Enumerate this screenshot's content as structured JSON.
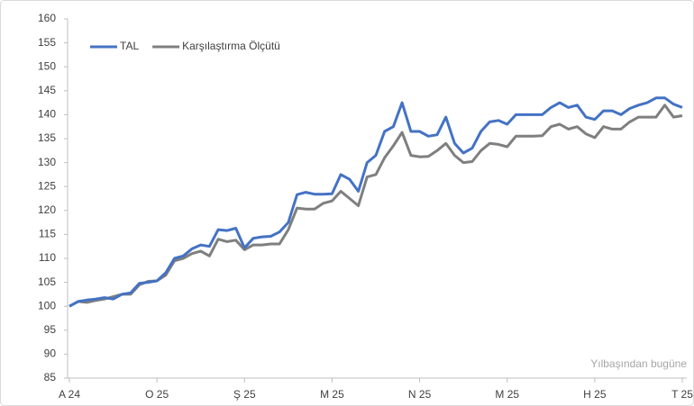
{
  "chart_data": {
    "type": "line",
    "categories": [
      "A 24",
      null,
      null,
      null,
      null,
      null,
      null,
      null,
      null,
      null,
      "O 25",
      null,
      null,
      null,
      null,
      null,
      null,
      null,
      null,
      null,
      "Ş 25",
      null,
      null,
      null,
      null,
      null,
      null,
      null,
      null,
      null,
      "M 25",
      null,
      null,
      null,
      null,
      null,
      null,
      null,
      null,
      null,
      "N 25",
      null,
      null,
      null,
      null,
      null,
      null,
      null,
      null,
      null,
      "M 25",
      null,
      null,
      null,
      null,
      null,
      null,
      null,
      null,
      null,
      "H 25",
      null,
      null,
      null,
      null,
      null,
      null,
      null,
      null,
      null,
      "T 25"
    ],
    "series": [
      {
        "name": "TAL",
        "color": "#4472c4",
        "values": [
          100,
          101,
          101.3,
          101.5,
          101.8,
          101.5,
          102.5,
          102.8,
          104.8,
          105,
          105.3,
          107,
          110,
          110.5,
          112,
          112.8,
          112.5,
          116,
          115.8,
          116.3,
          112.2,
          114.2,
          114.5,
          114.6,
          115.5,
          117.5,
          123.3,
          123.8,
          123.4,
          123.4,
          123.5,
          127.5,
          126.5,
          124,
          130,
          131.5,
          136.5,
          137.5,
          142.5,
          136.5,
          136.5,
          135.5,
          135.8,
          139.5,
          134,
          132,
          133,
          136.5,
          138.5,
          138.8,
          138,
          140,
          140,
          140,
          140,
          141.5,
          142.5,
          141.5,
          142,
          139.5,
          139,
          140.8,
          140.8,
          140,
          141.3,
          142,
          142.5,
          143.5,
          143.5,
          142.2,
          141.5
        ]
      },
      {
        "name": "Karşılaştırma Ölçütü",
        "color": "#7f7f7f",
        "values": [
          100,
          101,
          100.8,
          101.2,
          101.5,
          102,
          102.5,
          102.5,
          104.5,
          105.2,
          105.3,
          106.5,
          109.5,
          110,
          111,
          111.5,
          110.5,
          114,
          113.5,
          113.8,
          111.8,
          112.8,
          112.8,
          113,
          113,
          116,
          120.5,
          120.3,
          120.3,
          121.5,
          122,
          124,
          122.5,
          121,
          127,
          127.5,
          131,
          133.5,
          136.3,
          131.5,
          131.2,
          131.3,
          132.5,
          134,
          131.5,
          130,
          130.2,
          132.5,
          134,
          133.8,
          133.3,
          135.5,
          135.5,
          135.5,
          135.6,
          137.5,
          138,
          137,
          137.5,
          136,
          135.2,
          137.5,
          137,
          137,
          138.5,
          139.5,
          139.5,
          139.5,
          142,
          139.5,
          139.8
        ]
      }
    ],
    "ylim": [
      85,
      160
    ],
    "yticks": [
      85,
      90,
      95,
      100,
      105,
      110,
      115,
      120,
      125,
      130,
      135,
      140,
      145,
      150,
      155,
      160
    ],
    "grid": false,
    "legend": "upper left",
    "annotation": "Yılbaşından bugüne"
  }
}
